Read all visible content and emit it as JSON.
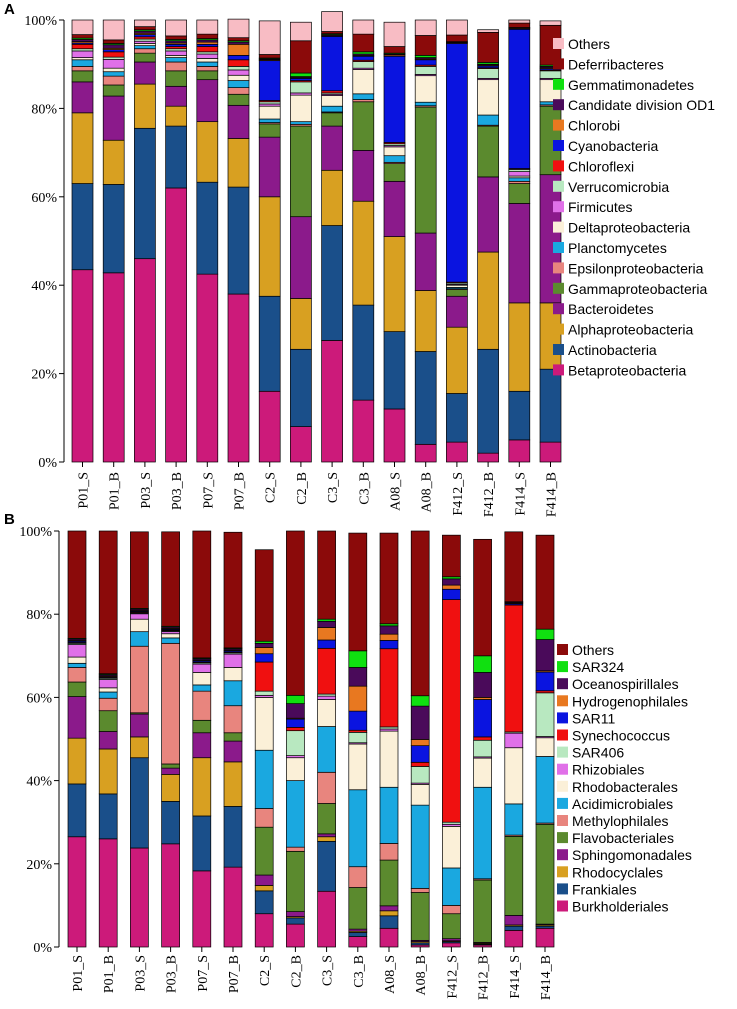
{
  "chart_data": [
    {
      "type": "bar",
      "stacked": true,
      "panel_label": "A",
      "title": "",
      "xlabel": "",
      "ylabel": "",
      "ylim": [
        0,
        100
      ],
      "yticks": [
        "0%",
        "20%",
        "40%",
        "60%",
        "80%",
        "100%"
      ],
      "categories": [
        "P01_S",
        "P01_B",
        "P03_S",
        "P03_B",
        "P07_S",
        "P07_B",
        "C2_S",
        "C2_B",
        "C3_S",
        "C3_B",
        "A08_S",
        "A08_B",
        "F412_S",
        "F412_B",
        "F414_S",
        "F414_B"
      ],
      "legend_position": "right",
      "series": [
        {
          "name": "Betaproteobacteria",
          "color": "#cc1a7a",
          "values": [
            43.5,
            42.8,
            46.0,
            62.0,
            42.5,
            38.0,
            16.0,
            8.0,
            27.5,
            14.0,
            12.0,
            4.0,
            4.5,
            2.0,
            5.0,
            4.5
          ]
        },
        {
          "name": "Actinobacteria",
          "color": "#1a4f8a",
          "values": [
            19.5,
            20.0,
            29.5,
            14.0,
            20.8,
            24.2,
            21.5,
            17.5,
            26.0,
            21.5,
            17.5,
            21.0,
            11.0,
            23.5,
            11.0,
            16.5
          ]
        },
        {
          "name": "Alphaproteobacteria",
          "color": "#d8a021",
          "values": [
            16.0,
            10.0,
            10.0,
            4.5,
            13.7,
            11.0,
            22.5,
            11.5,
            12.5,
            23.5,
            21.5,
            13.8,
            15.0,
            22.0,
            20.0,
            15.0
          ]
        },
        {
          "name": "Bacteroidetes",
          "color": "#8b1a8b",
          "values": [
            7.0,
            10.0,
            5.0,
            4.5,
            9.5,
            7.5,
            13.5,
            18.5,
            10.0,
            11.5,
            12.5,
            13.0,
            7.0,
            17.0,
            22.5,
            29.0
          ]
        },
        {
          "name": "Gammaproteobacteria",
          "color": "#5b8a2e",
          "values": [
            2.5,
            2.5,
            2.0,
            3.5,
            2.0,
            2.5,
            3.0,
            20.5,
            3.0,
            11.0,
            4.0,
            28.5,
            1.5,
            11.5,
            4.5,
            15.5
          ]
        },
        {
          "name": "Epsilonproteobacteria",
          "color": "#e8857e",
          "values": [
            1.0,
            2.0,
            1.0,
            2.0,
            1.0,
            1.5,
            0.3,
            0.4,
            0.2,
            0.5,
            0.3,
            0.3,
            0.2,
            0.2,
            0.5,
            0.3
          ]
        },
        {
          "name": "Planctomycetes",
          "color": "#1aa8e0",
          "values": [
            1.5,
            1.0,
            0.7,
            1.0,
            1.0,
            1.6,
            0.8,
            0.6,
            1.3,
            1.3,
            1.5,
            0.8,
            0.3,
            2.3,
            0.8,
            0.7
          ]
        },
        {
          "name": "Deltaproteobacteria",
          "color": "#fbf0d8",
          "values": [
            0.5,
            0.8,
            0.5,
            0.5,
            0.8,
            1.2,
            2.9,
            6.0,
            2.4,
            5.5,
            2.0,
            6.0,
            0.5,
            8.0,
            0.4,
            5.0
          ]
        },
        {
          "name": "Firmicutes",
          "color": "#e070e8",
          "values": [
            1.5,
            2.0,
            0.5,
            1.0,
            1.0,
            1.2,
            0.5,
            0.5,
            0.3,
            0.3,
            0.3,
            0.3,
            0.2,
            0.3,
            1.0,
            0.3
          ]
        },
        {
          "name": "Verrucomicrobia",
          "color": "#b8e8c0",
          "values": [
            0.5,
            0.5,
            0.5,
            0.5,
            0.5,
            0.8,
            0.5,
            2.5,
            0.3,
            1.5,
            0.4,
            1.8,
            0.3,
            2.2,
            0.5,
            1.7
          ]
        },
        {
          "name": "Chloroflexi",
          "color": "#f01010",
          "values": [
            1.0,
            1.2,
            0.5,
            0.5,
            1.2,
            1.5,
            0.3,
            0.3,
            0.5,
            0.3,
            0.3,
            0.3,
            0.2,
            0.2,
            0.2,
            0.2
          ]
        },
        {
          "name": "Cyanobacteria",
          "color": "#0a14e0",
          "values": [
            0.3,
            0.5,
            0.5,
            0.5,
            0.5,
            1.0,
            9.0,
            0.5,
            12.3,
            0.9,
            19.5,
            1.2,
            54.0,
            0.4,
            31.5,
            0.3
          ]
        },
        {
          "name": "Chlorobi",
          "color": "#e87820",
          "values": [
            0.3,
            0.3,
            0.3,
            0.3,
            0.5,
            2.5,
            0.2,
            0.2,
            0.2,
            0.2,
            0.3,
            0.2,
            0.2,
            0.2,
            0.2,
            0.2
          ]
        },
        {
          "name": "Candidate division OD1",
          "color": "#4a0a5a",
          "values": [
            0.5,
            0.8,
            0.5,
            0.5,
            0.5,
            0.5,
            0.2,
            0.2,
            0.2,
            0.3,
            0.2,
            0.3,
            0.1,
            0.2,
            0.1,
            0.3
          ]
        },
        {
          "name": "Gemmatimonadetes",
          "color": "#10e010",
          "values": [
            0.3,
            0.3,
            0.3,
            0.3,
            0.3,
            0.3,
            0.2,
            0.8,
            0.2,
            0.5,
            0.2,
            0.5,
            0.1,
            0.4,
            0.1,
            0.3
          ]
        },
        {
          "name": "Deferribacteres",
          "color": "#8b0a0a",
          "values": [
            0.8,
            0.8,
            0.7,
            0.8,
            1.0,
            0.7,
            0.8,
            7.3,
            0.5,
            4.0,
            1.5,
            4.5,
            1.5,
            6.8,
            1.0,
            9.0
          ]
        },
        {
          "name": "Others",
          "color": "#f8bcc4",
          "values": [
            3.3,
            4.5,
            1.5,
            3.6,
            3.2,
            4.2,
            7.6,
            4.2,
            4.5,
            3.2,
            5.5,
            3.5,
            3.4,
            0.6,
            0.7,
            1.0
          ]
        }
      ]
    },
    {
      "type": "bar",
      "stacked": true,
      "panel_label": "B",
      "title": "",
      "xlabel": "",
      "ylabel": "",
      "ylim": [
        0,
        100
      ],
      "yticks": [
        "0%",
        "20%",
        "40%",
        "60%",
        "80%",
        "100%"
      ],
      "categories": [
        "P01_S",
        "P01_B",
        "P03_S",
        "P03_B",
        "P07_S",
        "P07_B",
        "C2_S",
        "C2_B",
        "C3_S",
        "C3_B",
        "A08_S",
        "A08_B",
        "F412_S",
        "F412_B",
        "F414_S",
        "F414_B"
      ],
      "legend_position": "right",
      "series": [
        {
          "name": "Burkholderiales",
          "color": "#cc1a7a",
          "values": [
            26.5,
            26.0,
            23.8,
            24.8,
            18.3,
            19.2,
            8.0,
            5.5,
            13.4,
            2.5,
            4.5,
            0.5,
            1.0,
            0.5,
            4.0,
            4.5
          ]
        },
        {
          "name": "Frankiales",
          "color": "#1a4f8a",
          "values": [
            12.7,
            10.8,
            21.7,
            10.2,
            13.2,
            14.6,
            5.5,
            1.5,
            12.0,
            1.0,
            3.0,
            0.5,
            0.3,
            0.2,
            1.0,
            0.5
          ]
        },
        {
          "name": "Rhodocyclales",
          "color": "#d8a021",
          "values": [
            11.0,
            10.8,
            5.0,
            6.5,
            14.0,
            10.7,
            1.3,
            0.3,
            1.1,
            0.3,
            1.2,
            0.3,
            0.2,
            0.2,
            0.3,
            0.3
          ]
        },
        {
          "name": "Sphingomonadales",
          "color": "#8b1a8b",
          "values": [
            10.0,
            4.2,
            5.5,
            1.5,
            6.0,
            5.0,
            2.5,
            1.2,
            0.7,
            0.5,
            1.2,
            0.3,
            0.5,
            0.2,
            2.3,
            0.2
          ]
        },
        {
          "name": "Flavobacteriales",
          "color": "#5b8a2e",
          "values": [
            3.5,
            5.0,
            0.3,
            1.0,
            3.0,
            2.0,
            11.5,
            14.5,
            7.3,
            10.0,
            11.0,
            11.5,
            6.0,
            15.0,
            19.0,
            24.0
          ]
        },
        {
          "name": "Methylophilales",
          "color": "#e8857e",
          "values": [
            3.5,
            3.0,
            16.0,
            29.0,
            7.0,
            6.5,
            4.5,
            1.0,
            7.5,
            5.0,
            4.0,
            1.0,
            2.0,
            0.3,
            0.3,
            0.3
          ]
        },
        {
          "name": "Acidimicrobiales",
          "color": "#1aa8e0",
          "values": [
            1.0,
            1.5,
            3.5,
            1.3,
            1.5,
            6.0,
            14.0,
            16.0,
            11.0,
            18.5,
            13.5,
            20.0,
            9.0,
            22.0,
            7.5,
            16.0
          ]
        },
        {
          "name": "Rhodobacterales",
          "color": "#fbf0d8",
          "values": [
            1.5,
            1.0,
            3.0,
            1.0,
            3.0,
            3.2,
            12.7,
            5.5,
            6.5,
            11.0,
            13.5,
            5.0,
            10.0,
            7.0,
            13.5,
            4.5
          ]
        },
        {
          "name": "Rhizobiales",
          "color": "#e070e8",
          "values": [
            3.0,
            2.0,
            1.3,
            0.5,
            2.0,
            3.2,
            0.5,
            0.5,
            0.8,
            0.3,
            0.5,
            0.3,
            0.5,
            0.3,
            3.5,
            0.3
          ]
        },
        {
          "name": "SAR406",
          "color": "#b8e8c0",
          "values": [
            0.3,
            0.3,
            0.2,
            0.2,
            0.3,
            0.3,
            1.0,
            6.0,
            0.5,
            2.5,
            0.5,
            4.0,
            0.5,
            4.0,
            0.3,
            10.5
          ]
        },
        {
          "name": "Synechococcus",
          "color": "#f01010",
          "values": [
            0.2,
            0.2,
            0.2,
            0.2,
            0.2,
            0.2,
            7.0,
            0.8,
            11.0,
            0.5,
            18.8,
            1.0,
            53.5,
            0.8,
            30.5,
            0.5
          ]
        },
        {
          "name": "SAR11",
          "color": "#0a14e0",
          "values": [
            0.3,
            0.2,
            0.2,
            0.2,
            0.3,
            0.3,
            2.0,
            2.0,
            2.0,
            4.6,
            2.0,
            4.0,
            2.5,
            9.0,
            0.3,
            4.5
          ]
        },
        {
          "name": "Hydrogenophilales",
          "color": "#e87820",
          "values": [
            0.2,
            0.2,
            0.2,
            0.2,
            0.2,
            0.2,
            1.5,
            0.2,
            3.0,
            6.0,
            1.5,
            1.5,
            1.0,
            0.5,
            0.2,
            0.3
          ]
        },
        {
          "name": "Oceanospirillales",
          "color": "#4a0a5a",
          "values": [
            0.3,
            0.3,
            0.3,
            0.3,
            0.3,
            0.3,
            1.0,
            3.5,
            1.5,
            4.5,
            2.0,
            8.0,
            1.5,
            6.0,
            0.2,
            7.5
          ]
        },
        {
          "name": "SAR324",
          "color": "#10e010",
          "values": [
            0.2,
            0.2,
            0.2,
            0.2,
            0.2,
            0.2,
            0.5,
            2.0,
            0.5,
            4.0,
            0.5,
            2.5,
            0.5,
            4.0,
            0.1,
            2.5
          ]
        },
        {
          "name": "Others",
          "color": "#8b0a0a",
          "values": [
            25.8,
            34.3,
            18.4,
            22.7,
            30.5,
            27.8,
            22.0,
            39.5,
            21.2,
            28.3,
            21.8,
            39.6,
            10.0,
            28.0,
            16.8,
            22.6
          ]
        }
      ]
    }
  ]
}
